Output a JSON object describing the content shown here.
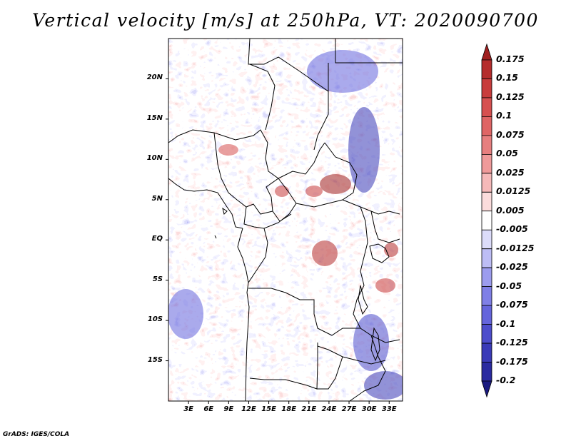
{
  "title": "Vertical velocity [m/s] at 250hPa, VT: 2020090700",
  "credit": "GrADS: IGES/COLA",
  "map": {
    "lon_range": [
      0,
      35
    ],
    "lat_range": [
      -20,
      25
    ],
    "lat_ticks": [
      {
        "value": 20,
        "label": "20N"
      },
      {
        "value": 15,
        "label": "15N"
      },
      {
        "value": 10,
        "label": "10N"
      },
      {
        "value": 5,
        "label": "5N"
      },
      {
        "value": 0,
        "label": "EQ"
      },
      {
        "value": -5,
        "label": "5S"
      },
      {
        "value": -10,
        "label": "10S"
      },
      {
        "value": -15,
        "label": "15S"
      }
    ],
    "lon_ticks": [
      {
        "value": 3,
        "label": "3E"
      },
      {
        "value": 6,
        "label": "6E"
      },
      {
        "value": 9,
        "label": "9E"
      },
      {
        "value": 12,
        "label": "12E"
      },
      {
        "value": 15,
        "label": "15E"
      },
      {
        "value": 18,
        "label": "18E"
      },
      {
        "value": 21,
        "label": "21E"
      },
      {
        "value": 24,
        "label": "24E"
      },
      {
        "value": 27,
        "label": "27E"
      },
      {
        "value": 30,
        "label": "30E"
      },
      {
        "value": 33,
        "label": "33E"
      }
    ]
  },
  "colorbar": {
    "labels": [
      "0.175",
      "0.15",
      "0.125",
      "0.1",
      "0.075",
      "0.05",
      "0.025",
      "0.0125",
      "0.005",
      "-0.005",
      "-0.0125",
      "-0.025",
      "-0.05",
      "-0.075",
      "-0.1",
      "-0.125",
      "-0.175",
      "-0.2"
    ],
    "colors": [
      "#a01f1f",
      "#b52c2c",
      "#c83c3c",
      "#d65050",
      "#df6565",
      "#e77f7f",
      "#ef9a9a",
      "#f5b9b9",
      "#fbdcdc",
      "#ffffff",
      "#dcdcfa",
      "#bdbdf5",
      "#9c9cee",
      "#7f7fe6",
      "#6565dc",
      "#4d4dcc",
      "#3a3ab8",
      "#2a2aa0",
      "#1a1a80"
    ]
  }
}
